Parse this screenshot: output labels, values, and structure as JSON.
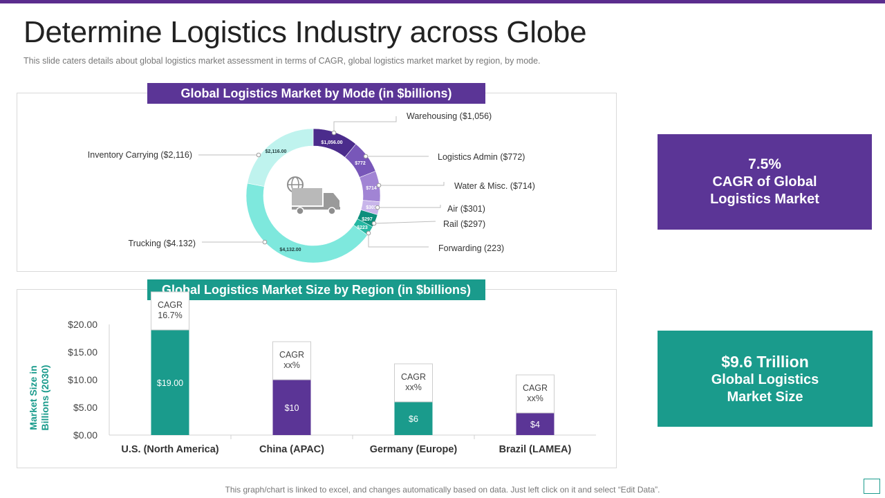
{
  "page": {
    "title": "Determine Logistics Industry across Globe",
    "subtitle": "This slide caters details about global logistics market assessment in terms of CAGR, global logistics market market by region, by mode.",
    "footer": "This graph/chart is linked to excel,  and changes automatically based on data. Just left click on it and select “Edit Data”."
  },
  "callouts": {
    "cagr": {
      "value": "7.5%",
      "label_line1": "CAGR of Global",
      "label_line2": "Logistics Market"
    },
    "size": {
      "value": "$9.6 Trillion",
      "label_line1": "Global Logistics",
      "label_line2": "Market Size"
    }
  },
  "colors": {
    "purple": "#5b3596",
    "teal": "#1a9b8c"
  },
  "chart_data": [
    {
      "type": "pie",
      "title": "Global Logistics Market by Mode (in $billions)",
      "center_icon": "truck-globe-icon",
      "slices": [
        {
          "name": "Warehousing",
          "value": 1056,
          "data_label": "$1,056.00",
          "legend_label": "Warehousing ($1,056)",
          "color": "#4b2c8c"
        },
        {
          "name": "Logistics Admin",
          "value": 772,
          "data_label": "$772",
          "legend_label": "Logistics Admin ($772)",
          "color": "#7857b9"
        },
        {
          "name": "Water & Misc.",
          "value": 714,
          "data_label": "$714",
          "legend_label": "Water & Misc. ($714)",
          "color": "#a184d4"
        },
        {
          "name": "Air",
          "value": 301,
          "data_label": "$301",
          "legend_label": "Air ($301)",
          "color": "#c8b5ea"
        },
        {
          "name": "Rail",
          "value": 297,
          "data_label": "$297",
          "legend_label": "Rail ($297)",
          "color": "#0e8f7c"
        },
        {
          "name": "Forwarding",
          "value": 223,
          "data_label": "$223",
          "legend_label": "Forwarding  (223)",
          "color": "#25b7a2"
        },
        {
          "name": "Trucking",
          "value": 4132,
          "data_label": "$4,132.00",
          "legend_label": "Trucking  ($4.132)",
          "color": "#7ee8dd"
        },
        {
          "name": "Inventory Carrying",
          "value": 2116,
          "data_label": "$2,116.00",
          "legend_label": "Inventory  Carrying  ($2,116)",
          "color": "#bff3ee"
        }
      ]
    },
    {
      "type": "bar",
      "title": "Global Logistics Market Size by Region  (in $billions)",
      "ylabel": "Market Size in Billions (2030)",
      "ylim": [
        0,
        20
      ],
      "yticks": [
        "$0.00",
        "$5.00",
        "$10.00",
        "$15.00",
        "$20.00"
      ],
      "categories": [
        "U.S. (North America)",
        "China (APAC)",
        "Germany (Europe)",
        "Brazil (LAMEA)"
      ],
      "values": [
        19,
        10,
        6,
        4
      ],
      "data_labels": [
        "$19.00",
        "$10",
        "$6",
        "$4"
      ],
      "bar_colors": [
        "#1a9b8c",
        "#5b3596",
        "#1a9b8c",
        "#5b3596"
      ],
      "annotations": [
        {
          "line1": "CAGR",
          "line2": "16.7%"
        },
        {
          "line1": "CAGR",
          "line2": "xx%"
        },
        {
          "line1": "CAGR",
          "line2": "xx%"
        },
        {
          "line1": "CAGR",
          "line2": "xx%"
        }
      ],
      "grid": false
    }
  ]
}
